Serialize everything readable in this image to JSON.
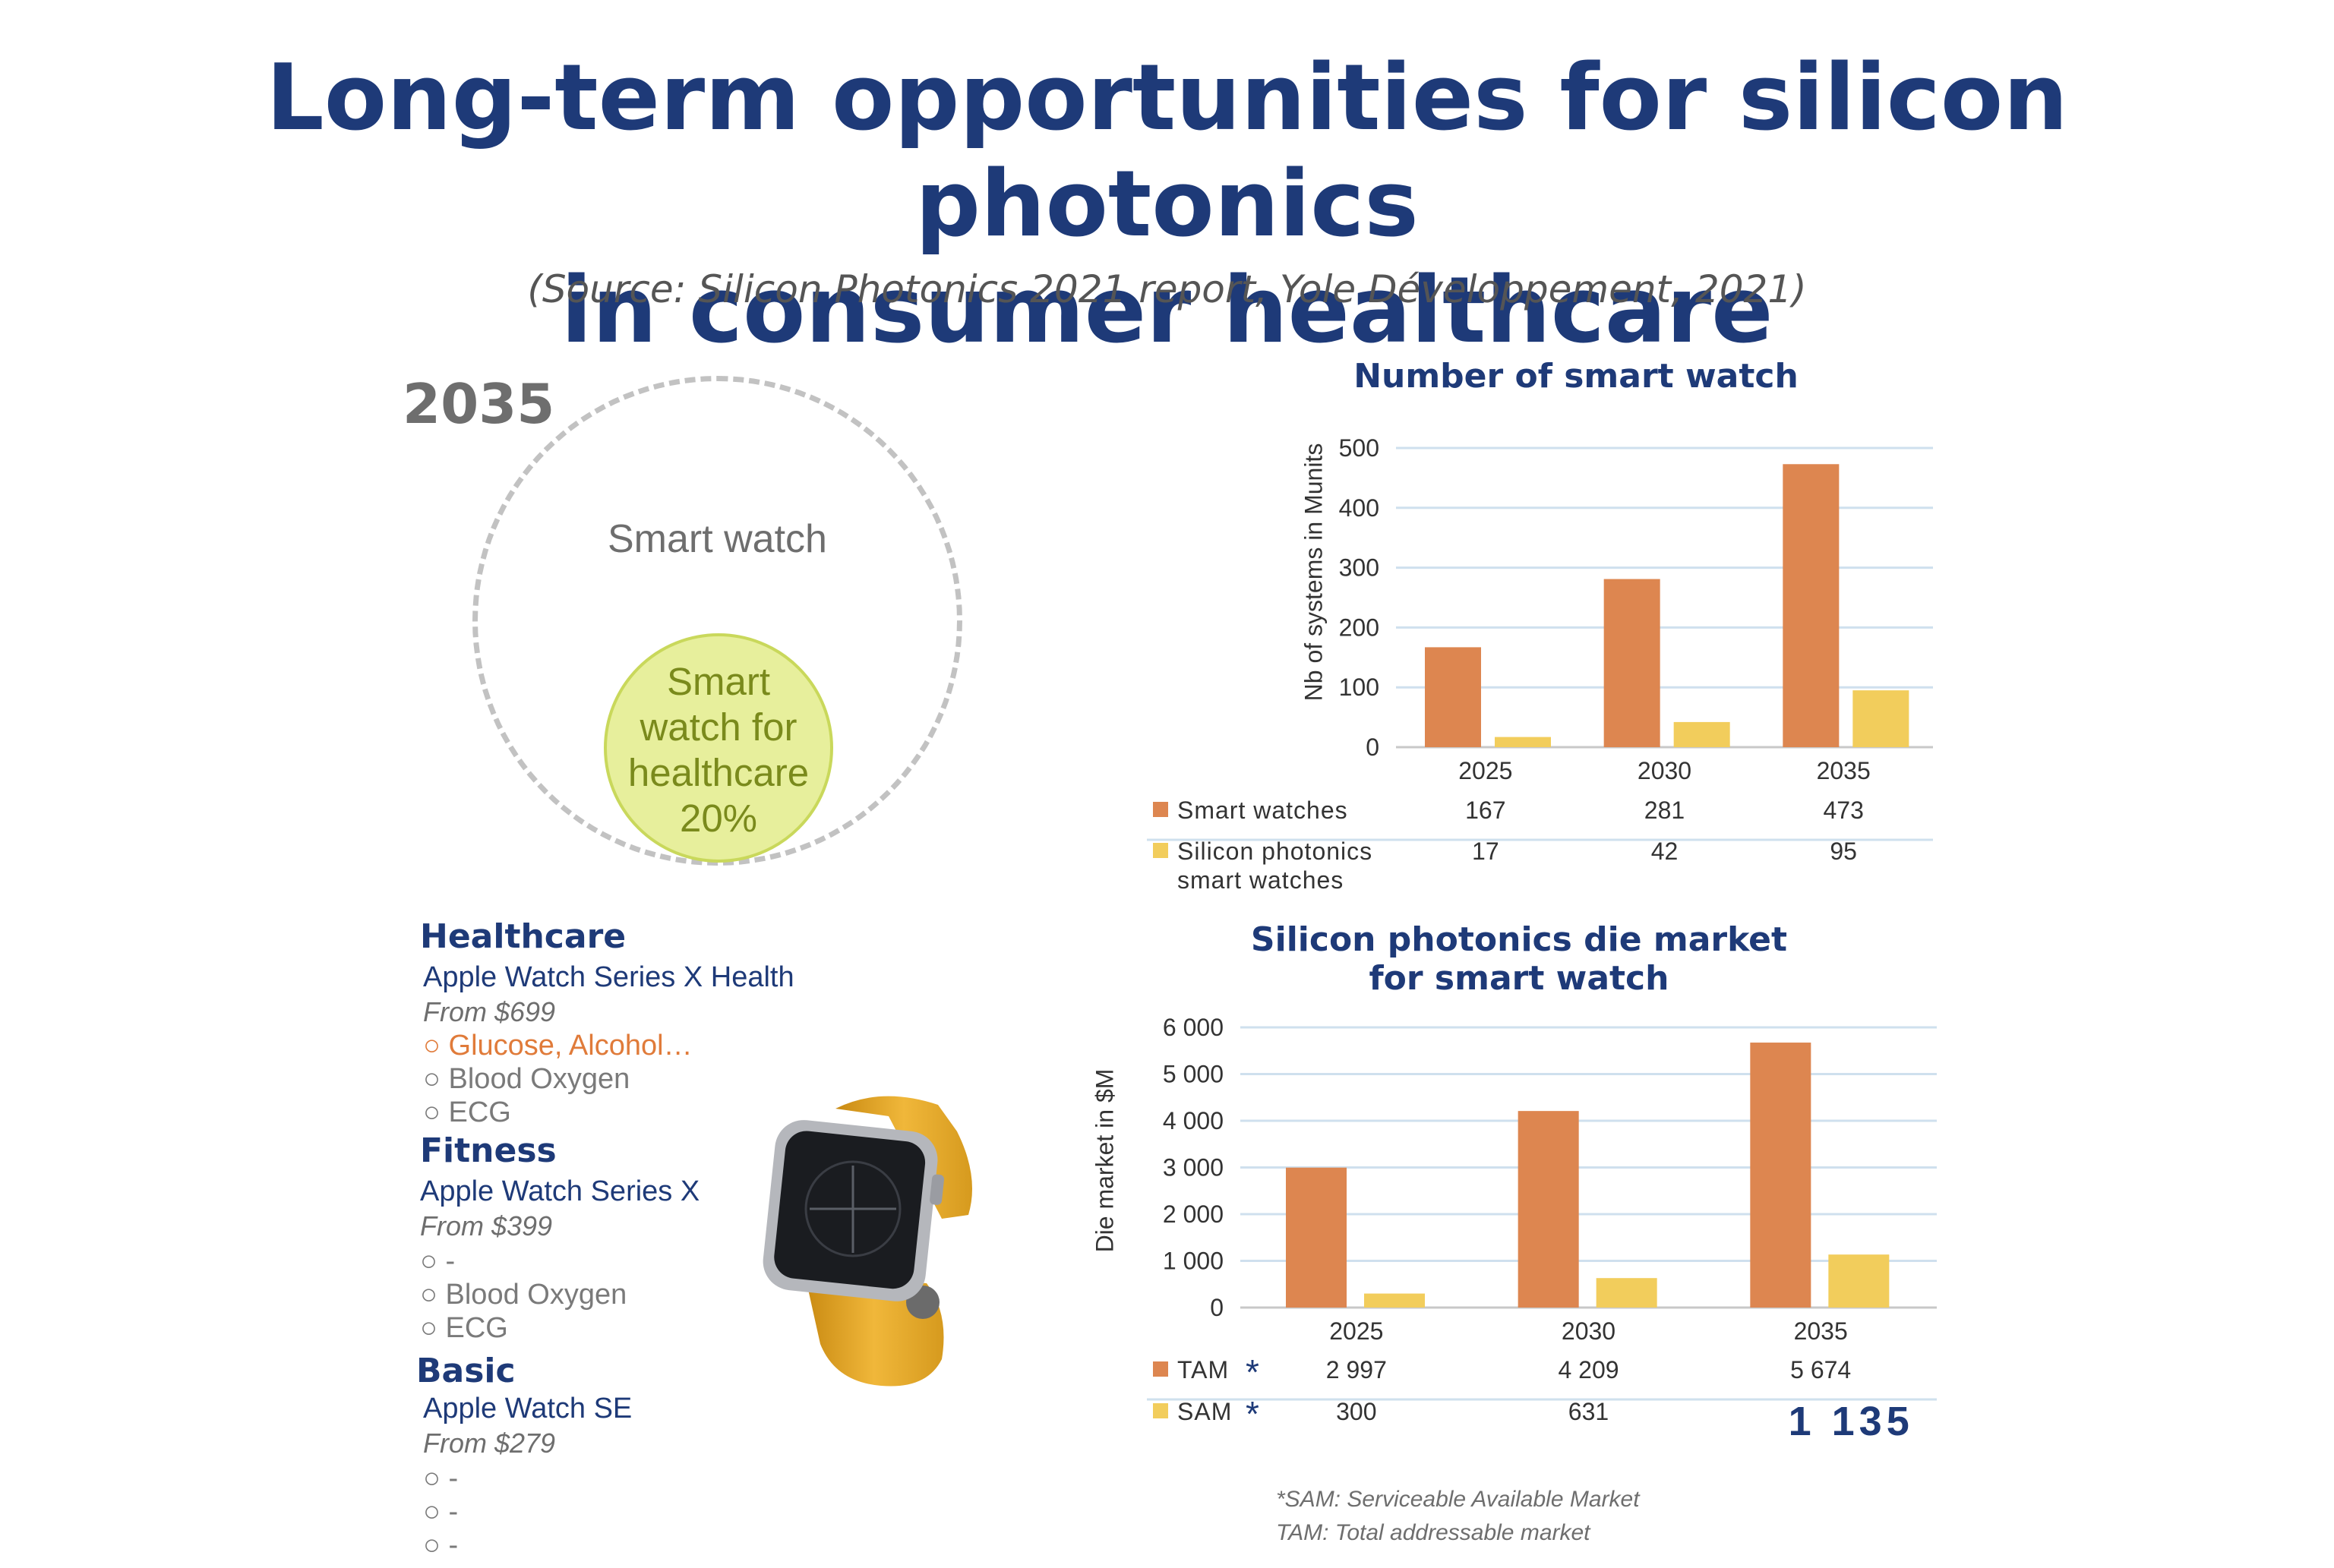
{
  "header": {
    "title_line1": "Long-term opportunities for silicon photonics",
    "title_line2": "in consumer healthcare",
    "source": "(Source: Silicon Photonics 2021 report, Yole Développement, 2021)"
  },
  "circles": {
    "year": "2035",
    "outer_label": "Smart watch",
    "inner_label_lines": [
      "Smart",
      "watch for",
      "healthcare",
      "20%"
    ],
    "healthcare_share_pct": 20
  },
  "products": [
    {
      "category": "Healthcare",
      "model": "Apple Watch Series X Health",
      "price": "From $699",
      "features": [
        "Glucose, Alcohol…",
        "Blood Oxygen",
        "ECG"
      ]
    },
    {
      "category": "Fitness",
      "model": "Apple Watch Series X",
      "price": "From $399",
      "features": [
        "-",
        "Blood Oxygen",
        "ECG"
      ]
    },
    {
      "category": "Basic",
      "model": "Apple Watch SE",
      "price": "From $279",
      "features": [
        "-",
        "-",
        "-"
      ]
    }
  ],
  "footnotes": {
    "sam": "*SAM: Serviceable Available Market",
    "tam": "TAM: Total addressable market"
  },
  "colors": {
    "title_blue": "#1e3a78",
    "bar_orange": "#dd8650",
    "bar_yellow": "#f2cd5c",
    "gridline": "#cfe0ee",
    "watch_yellow": "#e6a928",
    "circle_fill": "#e7ef9c"
  },
  "chart_data": [
    {
      "type": "bar",
      "title": "Number of smart watch",
      "ylabel": "Nb of systems in Munits",
      "categories": [
        "2025",
        "2030",
        "2035"
      ],
      "ylim": [
        0,
        500
      ],
      "yticks": [
        0,
        100,
        200,
        300,
        400,
        500
      ],
      "ytick_labels": [
        "0",
        "100",
        "200",
        "300",
        "400",
        "500"
      ],
      "grid": true,
      "series": [
        {
          "name": "Smart watches",
          "values": [
            167,
            281,
            473
          ],
          "labels": [
            "167",
            "281",
            "473"
          ]
        },
        {
          "name": "Silicon photonics smart watches",
          "name_lines": [
            "Silicon photonics",
            "smart watches"
          ],
          "values": [
            17,
            42,
            95
          ],
          "labels": [
            "17",
            "42",
            "95"
          ]
        }
      ]
    },
    {
      "type": "bar",
      "title": "Silicon photonics die market for smart watch",
      "title_lines": [
        "Silicon photonics die market",
        "for smart watch"
      ],
      "ylabel": "Die market in $M",
      "categories": [
        "2025",
        "2030",
        "2035"
      ],
      "ylim": [
        0,
        6000
      ],
      "yticks": [
        0,
        1000,
        2000,
        3000,
        4000,
        5000,
        6000
      ],
      "ytick_labels": [
        "0",
        "1 000",
        "2 000",
        "3 000",
        "4 000",
        "5 000",
        "6 000"
      ],
      "grid": true,
      "series": [
        {
          "name": "TAM",
          "values": [
            2997,
            4209,
            5674
          ],
          "labels": [
            "2 997",
            "4 209",
            "5 674"
          ]
        },
        {
          "name": "SAM",
          "values": [
            300,
            631,
            1135
          ],
          "labels": [
            "300",
            "631",
            "1 135"
          ]
        }
      ],
      "marker": "*"
    }
  ]
}
